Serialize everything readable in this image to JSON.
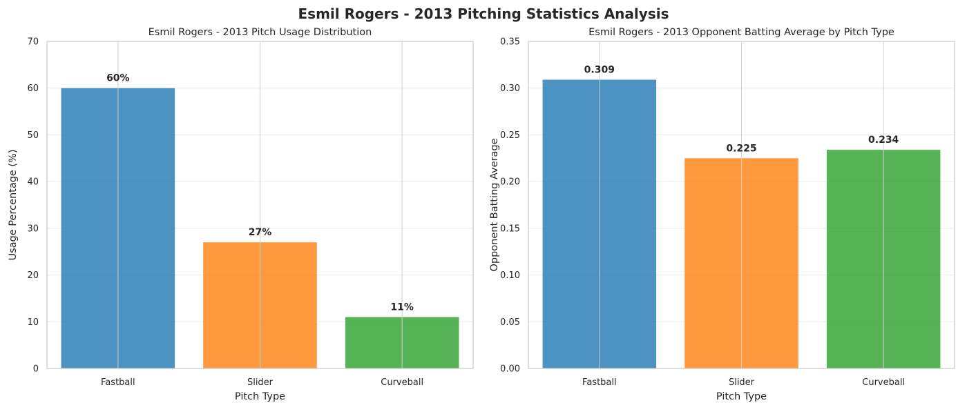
{
  "figure_title": "Esmil Rogers - 2013 Pitching Statistics Analysis",
  "chart_data": [
    {
      "type": "bar",
      "title": "Esmil Rogers - 2013 Pitch Usage Distribution",
      "xlabel": "Pitch Type",
      "ylabel": "Usage Percentage (%)",
      "categories": [
        "Fastball",
        "Slider",
        "Curveball"
      ],
      "values": [
        60,
        27,
        11
      ],
      "value_labels": [
        "60%",
        "27%",
        "11%"
      ],
      "ylim": [
        0,
        70
      ],
      "yticks": [
        0,
        10,
        20,
        30,
        40,
        50,
        60,
        70
      ],
      "ytick_labels": [
        "0",
        "10",
        "20",
        "30",
        "40",
        "50",
        "60",
        "70"
      ],
      "colors": [
        "#1f77b4",
        "#ff7f0e",
        "#2ca02c"
      ],
      "grid": true
    },
    {
      "type": "bar",
      "title": "Esmil Rogers - 2013 Opponent Batting Average by Pitch Type",
      "xlabel": "Pitch Type",
      "ylabel": "Opponent Batting Average",
      "categories": [
        "Fastball",
        "Slider",
        "Curveball"
      ],
      "values": [
        0.309,
        0.225,
        0.234
      ],
      "value_labels": [
        "0.309",
        "0.225",
        "0.234"
      ],
      "ylim": [
        0,
        0.35
      ],
      "yticks": [
        0,
        0.05,
        0.1,
        0.15,
        0.2,
        0.25,
        0.3,
        0.35
      ],
      "ytick_labels": [
        "0.00",
        "0.05",
        "0.10",
        "0.15",
        "0.20",
        "0.25",
        "0.30",
        "0.35"
      ],
      "colors": [
        "#1f77b4",
        "#ff7f0e",
        "#2ca02c"
      ],
      "grid": true
    }
  ]
}
